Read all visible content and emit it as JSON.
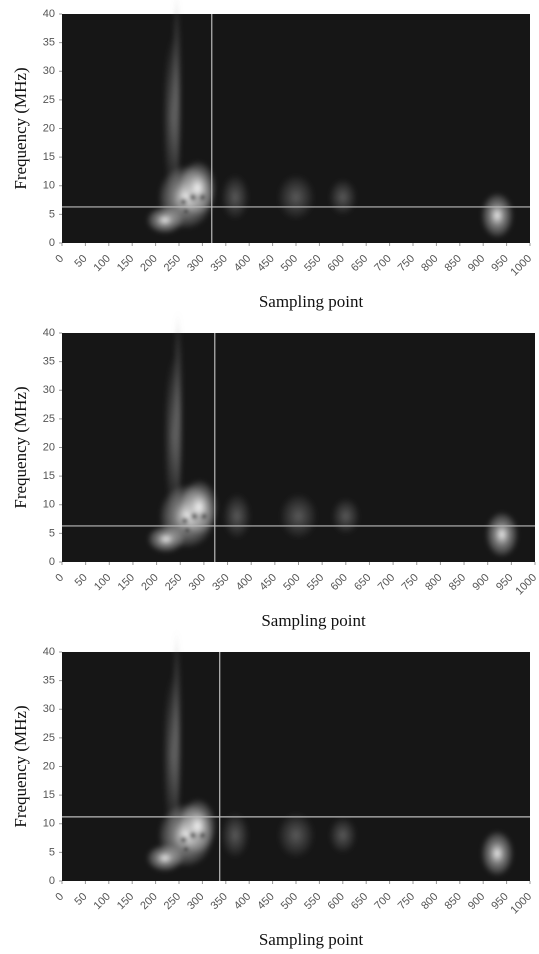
{
  "chart_data": [
    {
      "type": "heatmap",
      "xlabel": "Sampling point",
      "ylabel": "Frequency (MHz)",
      "xlim": [
        0,
        1000
      ],
      "xticks": [
        0,
        50,
        100,
        150,
        200,
        250,
        300,
        350,
        400,
        450,
        500,
        550,
        600,
        650,
        700,
        750,
        800,
        850,
        900,
        950,
        1000
      ],
      "ylim": [
        0,
        40
      ],
      "yticks": [
        0,
        5,
        10,
        15,
        20,
        25,
        30,
        35,
        40
      ],
      "crosshair": {
        "x": 320,
        "y": 6.3
      }
    },
    {
      "type": "heatmap",
      "xlabel": "Sampling point",
      "ylabel": "Frequency (MHz)",
      "xlim": [
        0,
        1000
      ],
      "xticks": [
        0,
        50,
        100,
        150,
        200,
        250,
        300,
        350,
        400,
        450,
        500,
        550,
        600,
        650,
        700,
        750,
        800,
        850,
        900,
        950,
        1000
      ],
      "ylim": [
        0,
        40
      ],
      "yticks": [
        0,
        5,
        10,
        15,
        20,
        25,
        30,
        35,
        40
      ],
      "crosshair": {
        "x": 323,
        "y": 6.3
      }
    },
    {
      "type": "heatmap",
      "xlabel": "Sampling point",
      "ylabel": "Frequency (MHz)",
      "xlim": [
        0,
        1000
      ],
      "xticks": [
        0,
        50,
        100,
        150,
        200,
        250,
        300,
        350,
        400,
        450,
        500,
        550,
        600,
        650,
        700,
        750,
        800,
        850,
        900,
        950,
        1000
      ],
      "ylim": [
        0,
        40
      ],
      "yticks": [
        0,
        5,
        10,
        15,
        20,
        25,
        30,
        35,
        40
      ],
      "crosshair": {
        "x": 337,
        "y": 11.2
      }
    }
  ]
}
